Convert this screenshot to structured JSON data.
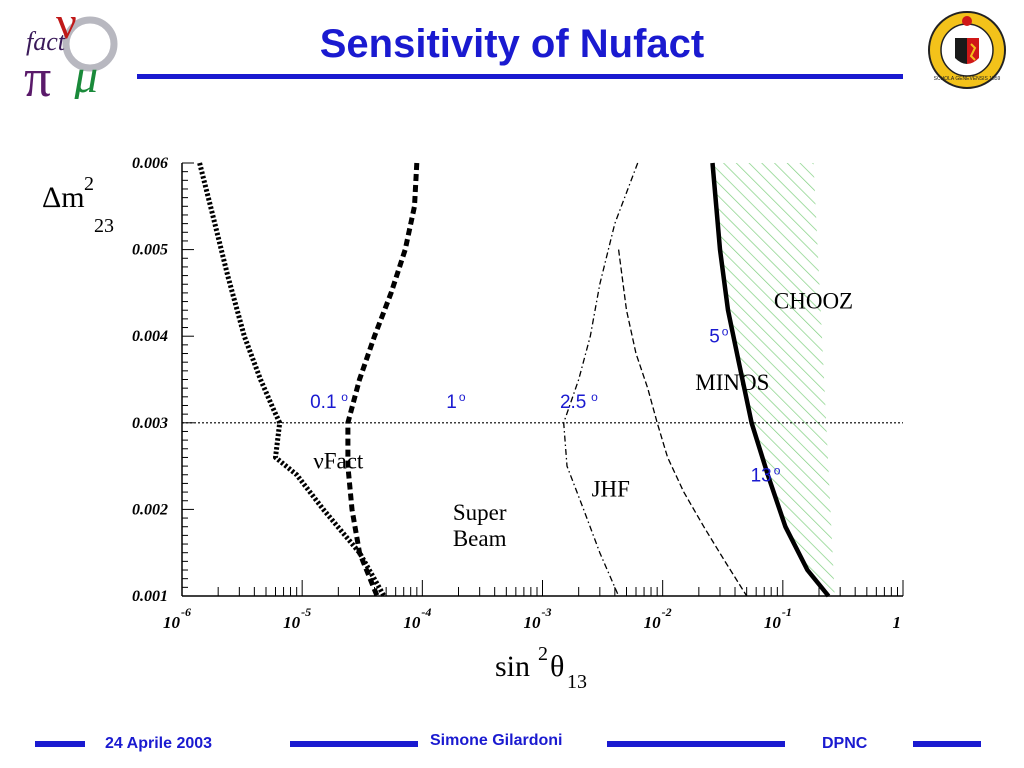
{
  "header": {
    "title": "Sensitivity of  Nufact",
    "logo_text": [
      "fact",
      "ν",
      "π",
      "μ"
    ],
    "seal_text": "SCHOLA GENEVENSIS 1559"
  },
  "footer": {
    "date": "24 Aprile 2003",
    "author": "Simone Gilardoni",
    "org": "DPNC"
  },
  "colors": {
    "accent": "#1a1ad0",
    "hatch": "#7fcf7f"
  },
  "chart_data": {
    "type": "line",
    "xscale": "log",
    "xlim": [
      1e-06,
      1
    ],
    "ylim": [
      0.001,
      0.006
    ],
    "xlabel": "sin²θ13",
    "ylabel": "Δm²23",
    "xtick_labels": [
      {
        "v": 1e-06,
        "base": "10",
        "exp": "-6"
      },
      {
        "v": 1e-05,
        "base": "10",
        "exp": "-5"
      },
      {
        "v": 0.0001,
        "base": "10",
        "exp": "-4"
      },
      {
        "v": 0.001,
        "base": "10",
        "exp": "-3"
      },
      {
        "v": 0.01,
        "base": "10",
        "exp": "-2"
      },
      {
        "v": 0.1,
        "base": "10",
        "exp": "-1"
      },
      {
        "v": 1,
        "base": "1",
        "exp": ""
      }
    ],
    "ytick_labels": [
      "0.001",
      "0.002",
      "0.003",
      "0.004",
      "0.005",
      "0.006"
    ],
    "ytick_values": [
      0.001,
      0.002,
      0.003,
      0.004,
      0.005,
      0.006
    ],
    "reference_line": {
      "y": 0.003,
      "style": "dotted"
    },
    "series": [
      {
        "name": "νFact",
        "style": "dotted-thick",
        "points": [
          [
            1.4e-06,
            0.006
          ],
          [
            1.8e-06,
            0.0054
          ],
          [
            2.4e-06,
            0.0047
          ],
          [
            3.3e-06,
            0.004
          ],
          [
            4.5e-06,
            0.0035
          ],
          [
            5.8e-06,
            0.00315
          ],
          [
            6.5e-06,
            0.003
          ],
          [
            6e-06,
            0.0026
          ],
          [
            9e-06,
            0.0024
          ],
          [
            1.5e-05,
            0.002
          ],
          [
            3e-05,
            0.0015
          ],
          [
            4.8e-05,
            0.001
          ]
        ]
      },
      {
        "name": "Super Beam",
        "style": "dashed-thick",
        "points": [
          [
            9e-05,
            0.006
          ],
          [
            8.6e-05,
            0.0055
          ],
          [
            7.2e-05,
            0.005
          ],
          [
            5.5e-05,
            0.0045
          ],
          [
            4e-05,
            0.004
          ],
          [
            3e-05,
            0.0035
          ],
          [
            2.4e-05,
            0.003
          ],
          [
            2.4e-05,
            0.0025
          ],
          [
            2.6e-05,
            0.002
          ],
          [
            3e-05,
            0.0015
          ],
          [
            4.2e-05,
            0.001
          ]
        ]
      },
      {
        "name": "JHF",
        "style": "dashdot",
        "points": [
          [
            0.0062,
            0.006
          ],
          [
            0.004,
            0.0053
          ],
          [
            0.003,
            0.0046
          ],
          [
            0.0025,
            0.004
          ],
          [
            0.002,
            0.0035
          ],
          [
            0.0015,
            0.003
          ],
          [
            0.0016,
            0.0025
          ],
          [
            0.0022,
            0.002
          ],
          [
            0.003,
            0.0015
          ],
          [
            0.0043,
            0.001
          ]
        ]
      },
      {
        "name": "MINOS",
        "style": "dashed-thin",
        "points": [
          [
            0.0043,
            0.005
          ],
          [
            0.005,
            0.0043
          ],
          [
            0.006,
            0.0038
          ],
          [
            0.0075,
            0.0034
          ],
          [
            0.009,
            0.003
          ],
          [
            0.011,
            0.0026
          ],
          [
            0.015,
            0.0022
          ],
          [
            0.022,
            0.0018
          ],
          [
            0.033,
            0.0014
          ],
          [
            0.05,
            0.001
          ]
        ]
      },
      {
        "name": "CHOOZ",
        "style": "solid-thick",
        "points": [
          [
            0.026,
            0.006
          ],
          [
            0.03,
            0.005
          ],
          [
            0.035,
            0.0043
          ],
          [
            0.043,
            0.0037
          ],
          [
            0.055,
            0.003
          ],
          [
            0.075,
            0.0024
          ],
          [
            0.105,
            0.0018
          ],
          [
            0.16,
            0.0013
          ],
          [
            0.24,
            0.001
          ]
        ]
      }
    ],
    "hatched_region": {
      "label": "CHOOZ",
      "x_right": 0.18,
      "x_right_bottom": 0.27
    },
    "curve_labels": [
      {
        "text": "νFact",
        "x": 2e-05,
        "y": 0.00247
      },
      {
        "text": "Super",
        "x": 0.0003,
        "y": 0.00188
      },
      {
        "text": "Beam",
        "x": 0.0003,
        "y": 0.00158
      },
      {
        "text": "JHF",
        "x": 0.0037,
        "y": 0.00215
      },
      {
        "text": "MINOS",
        "x": 0.038,
        "y": 0.00338
      },
      {
        "text": "CHOOZ",
        "x": 0.18,
        "y": 0.00432
      }
    ],
    "angle_labels": [
      {
        "text": "0.1",
        "sup": "o",
        "x": 1.5e-05,
        "y": 0.00317
      },
      {
        "text": "1",
        "sup": "o",
        "x": 0.000175,
        "y": 0.00317
      },
      {
        "text": "2.5",
        "sup": "o",
        "x": 0.0018,
        "y": 0.00317
      },
      {
        "text": "5",
        "sup": "o",
        "x": 0.027,
        "y": 0.00393
      },
      {
        "text": "13",
        "sup": "o",
        "x": 0.066,
        "y": 0.00232
      }
    ]
  }
}
